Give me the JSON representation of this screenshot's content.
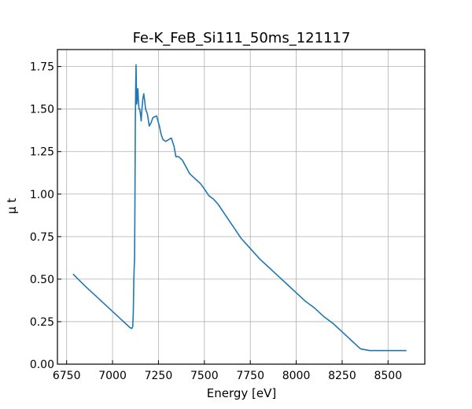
{
  "chart_data": {
    "type": "line",
    "title": "Fe-K_FeB_Si111_50ms_121117",
    "xlabel": "Energy [eV]",
    "ylabel": "μ t",
    "xlim": [
      6700,
      8700
    ],
    "ylim": [
      0.0,
      1.85
    ],
    "grid": true,
    "x_ticks": [
      6750,
      7000,
      7250,
      7500,
      7750,
      8000,
      8250,
      8500
    ],
    "y_ticks": [
      0.0,
      0.25,
      0.5,
      0.75,
      1.0,
      1.25,
      1.5,
      1.75
    ],
    "x_tick_labels": [
      "6750",
      "7000",
      "7250",
      "7500",
      "7750",
      "8000",
      "8250",
      "8500"
    ],
    "y_tick_labels": [
      "0.00",
      "0.25",
      "0.50",
      "0.75",
      "1.00",
      "1.25",
      "1.50",
      "1.75"
    ],
    "series": [
      {
        "color": "#1f77b4",
        "x": [
          6785,
          6850,
          6900,
          6950,
          7000,
          7050,
          7080,
          7095,
          7105,
          7110,
          7113,
          7116,
          7118,
          7120,
          7122,
          7124,
          7126,
          7128,
          7130,
          7132,
          7135,
          7138,
          7141,
          7144,
          7148,
          7152,
          7156,
          7160,
          7165,
          7170,
          7175,
          7180,
          7190,
          7200,
          7210,
          7220,
          7240,
          7255,
          7265,
          7275,
          7290,
          7305,
          7320,
          7335,
          7345,
          7360,
          7380,
          7400,
          7420,
          7440,
          7460,
          7480,
          7500,
          7525,
          7550,
          7575,
          7600,
          7625,
          7650,
          7700,
          7750,
          7800,
          7850,
          7900,
          7950,
          8000,
          8050,
          8100,
          8150,
          8200,
          8250,
          8300,
          8350,
          8400,
          8450,
          8500,
          8550,
          8600
        ],
        "y": [
          0.53,
          0.46,
          0.41,
          0.36,
          0.31,
          0.26,
          0.23,
          0.215,
          0.21,
          0.22,
          0.3,
          0.5,
          0.57,
          0.62,
          0.95,
          1.4,
          1.62,
          1.76,
          1.62,
          1.53,
          1.58,
          1.62,
          1.55,
          1.5,
          1.5,
          1.47,
          1.43,
          1.5,
          1.56,
          1.59,
          1.55,
          1.5,
          1.47,
          1.4,
          1.42,
          1.45,
          1.46,
          1.4,
          1.35,
          1.32,
          1.31,
          1.32,
          1.33,
          1.28,
          1.22,
          1.22,
          1.2,
          1.16,
          1.12,
          1.1,
          1.08,
          1.06,
          1.03,
          0.99,
          0.97,
          0.94,
          0.9,
          0.86,
          0.82,
          0.74,
          0.68,
          0.62,
          0.57,
          0.52,
          0.47,
          0.42,
          0.37,
          0.33,
          0.28,
          0.24,
          0.19,
          0.14,
          0.09,
          0.08,
          0.08,
          0.08,
          0.08,
          0.08
        ]
      }
    ]
  }
}
